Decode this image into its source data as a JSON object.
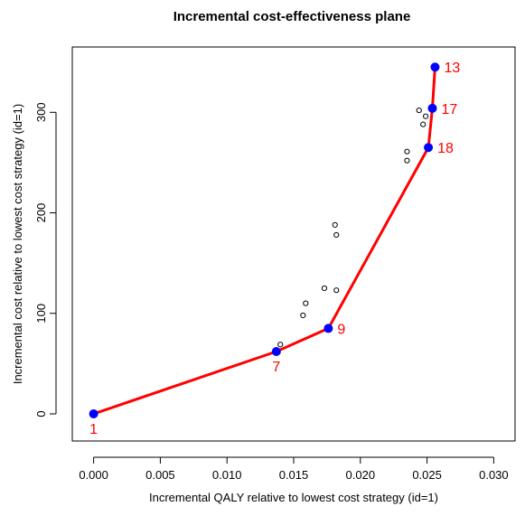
{
  "chart_data": {
    "type": "scatter",
    "title": "Incremental cost-effectiveness plane",
    "xlabel": "Incremental QALY relative to lowest cost strategy (id=1)",
    "ylabel": "Incremental cost relative to lowest cost strategy (id=1)",
    "xlim": [
      -0.0016,
      0.0316
    ],
    "ylim": [
      -27,
      365
    ],
    "x_ticks": [
      0.0,
      0.005,
      0.01,
      0.015,
      0.02,
      0.025,
      0.03
    ],
    "x_tick_labels": [
      "0.000",
      "0.005",
      "0.010",
      "0.015",
      "0.020",
      "0.025",
      "0.030"
    ],
    "y_ticks": [
      0,
      100,
      200,
      300
    ],
    "y_tick_labels": [
      "0",
      "100",
      "200",
      "300"
    ],
    "grid": false,
    "frontier": {
      "line_color": "#ff0000",
      "marker_color": "#0000ff",
      "label_color": "#ff0000",
      "points": [
        {
          "id": "1",
          "x": 0.0,
          "y": 0
        },
        {
          "id": "7",
          "x": 0.0137,
          "y": 62
        },
        {
          "id": "9",
          "x": 0.0176,
          "y": 85
        },
        {
          "id": "18",
          "x": 0.0251,
          "y": 265
        },
        {
          "id": "17",
          "x": 0.0254,
          "y": 304
        },
        {
          "id": "13",
          "x": 0.0256,
          "y": 345
        }
      ]
    },
    "dominated": {
      "marker_color": "#000000",
      "points": [
        {
          "x": 0.014,
          "y": 69
        },
        {
          "x": 0.0157,
          "y": 98
        },
        {
          "x": 0.0159,
          "y": 110
        },
        {
          "x": 0.0173,
          "y": 125
        },
        {
          "x": 0.0182,
          "y": 123
        },
        {
          "x": 0.0181,
          "y": 188
        },
        {
          "x": 0.0182,
          "y": 178
        },
        {
          "x": 0.0235,
          "y": 261
        },
        {
          "x": 0.0235,
          "y": 252
        },
        {
          "x": 0.0244,
          "y": 302
        },
        {
          "x": 0.0249,
          "y": 296
        },
        {
          "x": 0.0247,
          "y": 288
        }
      ]
    }
  }
}
